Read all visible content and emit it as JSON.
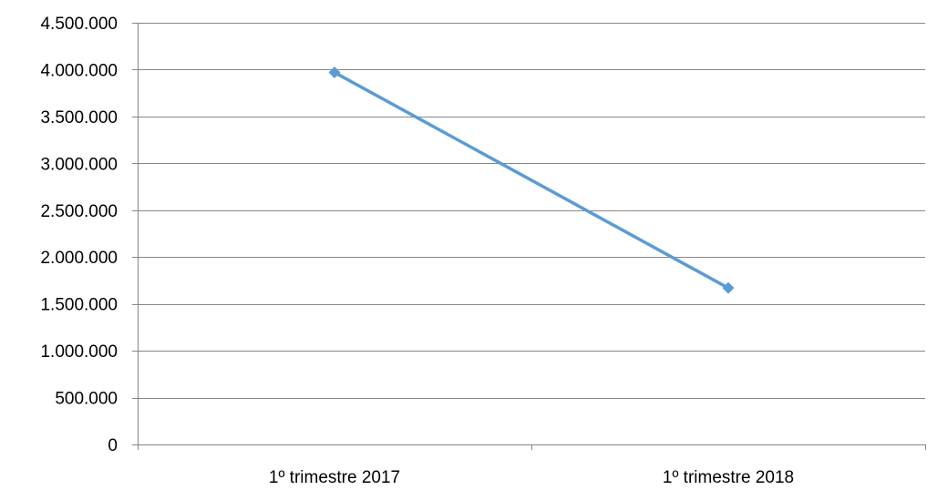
{
  "chart_data": {
    "type": "line",
    "categories": [
      "1º trimestre 2017",
      "1º trimestre 2018"
    ],
    "series": [
      {
        "values": [
          3970000,
          1670000
        ],
        "color": "#5b9bd5",
        "marker": "diamond"
      }
    ],
    "ylim": [
      0,
      4500000
    ],
    "y_ticks": [
      0,
      500000,
      1000000,
      1500000,
      2000000,
      2500000,
      3000000,
      3500000,
      4000000,
      4500000
    ],
    "y_tick_labels": [
      "0",
      "500.000",
      "1.000.000",
      "1.500.000",
      "2.000.000",
      "2.500.000",
      "3.000.000",
      "3.500.000",
      "4.000.000",
      "4.500.000"
    ],
    "grid": true,
    "gridline_color": "#868686",
    "legend": "none"
  }
}
